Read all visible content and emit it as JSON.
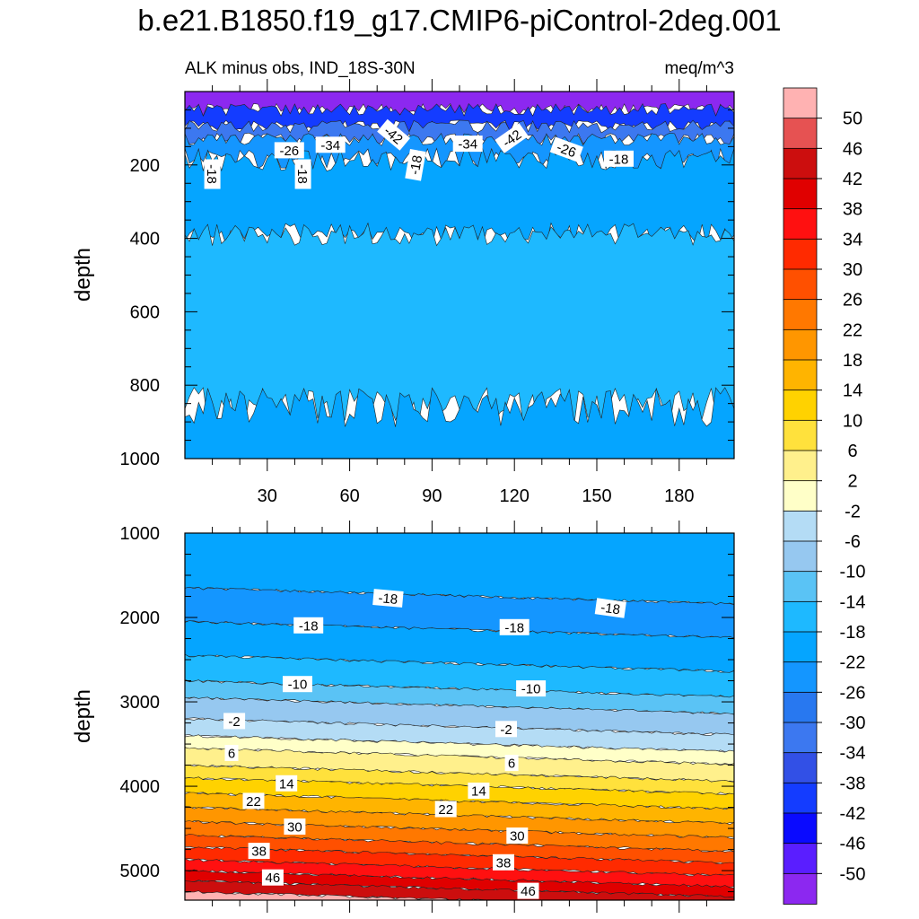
{
  "title": "b.e21.B1850.f19_g17.CMIP6-piControl-2deg.001",
  "chart_data": [
    {
      "type": "heatmap",
      "name": "upper-panel",
      "left_label": "ALK minus obs, IND_18S-30N",
      "right_label": "meq/m^3",
      "xlabel": "",
      "ylabel": "depth",
      "xlim": [
        0,
        200
      ],
      "ylim": [
        0,
        1000
      ],
      "x_ticks": [
        30,
        60,
        90,
        120,
        150,
        180
      ],
      "y_ticks": [
        200,
        400,
        600,
        800,
        1000
      ],
      "levels": [
        {
          "from": 0,
          "to": 50,
          "value": -50
        },
        {
          "from": 50,
          "to": 95,
          "value": -38
        },
        {
          "from": 95,
          "to": 130,
          "value": -30
        },
        {
          "from": 130,
          "to": 185,
          "value": -22
        },
        {
          "from": 185,
          "to": 390,
          "value": -18
        },
        {
          "from": 390,
          "to": 860,
          "value": -14
        },
        {
          "from": 860,
          "to": 1000,
          "value": -18
        }
      ],
      "contour_labels": [
        {
          "text": "-26",
          "x": 38,
          "y": 160,
          "angle": 0
        },
        {
          "text": "-34",
          "x": 53,
          "y": 145,
          "angle": 0
        },
        {
          "text": "-42",
          "x": 76,
          "y": 118,
          "angle": 40
        },
        {
          "text": "-34",
          "x": 103,
          "y": 142,
          "angle": 0
        },
        {
          "text": "-42",
          "x": 119,
          "y": 127,
          "angle": -35
        },
        {
          "text": "-26",
          "x": 139,
          "y": 158,
          "angle": 20
        },
        {
          "text": "-18",
          "x": 158,
          "y": 183,
          "angle": 0
        },
        {
          "text": "-18",
          "x": 10,
          "y": 225,
          "angle": 90
        },
        {
          "text": "-18",
          "x": 43,
          "y": 225,
          "angle": 90
        },
        {
          "text": "-18",
          "x": 84,
          "y": 200,
          "angle": -80
        }
      ]
    },
    {
      "type": "heatmap",
      "name": "lower-panel",
      "xlabel": "",
      "ylabel": "depth",
      "xlim": [
        0,
        200
      ],
      "ylim": [
        1000,
        5350
      ],
      "y_ticks": [
        1000,
        2000,
        3000,
        4000,
        5000
      ],
      "levels": [
        {
          "from": 1000,
          "to": 1650,
          "value": -18
        },
        {
          "from": 1650,
          "to": 2050,
          "value": -22
        },
        {
          "from": 2050,
          "to": 2450,
          "value": -18
        },
        {
          "from": 2450,
          "to": 2750,
          "value": -14
        },
        {
          "from": 2750,
          "to": 2950,
          "value": -10
        },
        {
          "from": 2950,
          "to": 3200,
          "value": -6
        },
        {
          "from": 3200,
          "to": 3400,
          "value": -2
        },
        {
          "from": 3400,
          "to": 3550,
          "value": 2
        },
        {
          "from": 3550,
          "to": 3750,
          "value": 6
        },
        {
          "from": 3750,
          "to": 3900,
          "value": 10
        },
        {
          "from": 3900,
          "to": 4080,
          "value": 14
        },
        {
          "from": 4080,
          "to": 4250,
          "value": 18
        },
        {
          "from": 4250,
          "to": 4420,
          "value": 22
        },
        {
          "from": 4420,
          "to": 4580,
          "value": 26
        },
        {
          "from": 4580,
          "to": 4720,
          "value": 30
        },
        {
          "from": 4720,
          "to": 4870,
          "value": 34
        },
        {
          "from": 4870,
          "to": 5000,
          "value": 38
        },
        {
          "from": 5000,
          "to": 5120,
          "value": 42
        },
        {
          "from": 5120,
          "to": 5250,
          "value": 46
        },
        {
          "from": 5250,
          "to": 5350,
          "value": 50
        }
      ],
      "contour_labels": [
        {
          "text": "-18",
          "x": 74,
          "y": 1700,
          "angle": 5
        },
        {
          "text": "-18",
          "x": 155,
          "y": 1740,
          "angle": 8
        },
        {
          "text": "-18",
          "x": 45,
          "y": 2050,
          "angle": 0
        },
        {
          "text": "-18",
          "x": 120,
          "y": 2000,
          "angle": 0
        },
        {
          "text": "-10",
          "x": 41,
          "y": 2750,
          "angle": 0
        },
        {
          "text": "-10",
          "x": 126,
          "y": 2720,
          "angle": 0
        },
        {
          "text": "-2",
          "x": 18,
          "y": 3210,
          "angle": 0
        },
        {
          "text": "-2",
          "x": 117,
          "y": 3210,
          "angle": 0
        },
        {
          "text": "6",
          "x": 17,
          "y": 3590,
          "angle": 0
        },
        {
          "text": "6",
          "x": 119,
          "y": 3610,
          "angle": 0
        },
        {
          "text": "14",
          "x": 37,
          "y": 3930,
          "angle": 0
        },
        {
          "text": "14",
          "x": 107,
          "y": 3950,
          "angle": 0
        },
        {
          "text": "22",
          "x": 25,
          "y": 4150,
          "angle": 0
        },
        {
          "text": "22",
          "x": 95,
          "y": 4180,
          "angle": 0
        },
        {
          "text": "30",
          "x": 40,
          "y": 4440,
          "angle": 0
        },
        {
          "text": "30",
          "x": 121,
          "y": 4470,
          "angle": 0
        },
        {
          "text": "38",
          "x": 27,
          "y": 4740,
          "angle": 0
        },
        {
          "text": "38",
          "x": 116,
          "y": 4790,
          "angle": 0
        },
        {
          "text": "46",
          "x": 32,
          "y": 5050,
          "angle": 0
        },
        {
          "text": "46",
          "x": 125,
          "y": 5120,
          "angle": 0
        }
      ]
    }
  ],
  "colorbar": {
    "labels": [
      "50",
      "46",
      "42",
      "38",
      "34",
      "30",
      "26",
      "22",
      "18",
      "14",
      "10",
      "6",
      "2",
      "-2",
      "-6",
      "-10",
      "-14",
      "-18",
      "-22",
      "-26",
      "-30",
      "-34",
      "-38",
      "-42",
      "-46",
      "-50"
    ],
    "colors": [
      "#ffb2b2",
      "#e65252",
      "#cc0e0e",
      "#e00000",
      "#ff1010",
      "#ff2a00",
      "#ff5000",
      "#ff7800",
      "#ff9600",
      "#ffb400",
      "#ffd200",
      "#ffe13c",
      "#fff08c",
      "#ffffc8",
      "#b4dcf5",
      "#96c8f0",
      "#5ac3f5",
      "#1eb9ff",
      "#05a5ff",
      "#1496ff",
      "#2878f0",
      "#3c78f0",
      "#3250e6",
      "#143cff",
      "#0a0aff",
      "#5a1eff",
      "#8c28f0"
    ]
  }
}
